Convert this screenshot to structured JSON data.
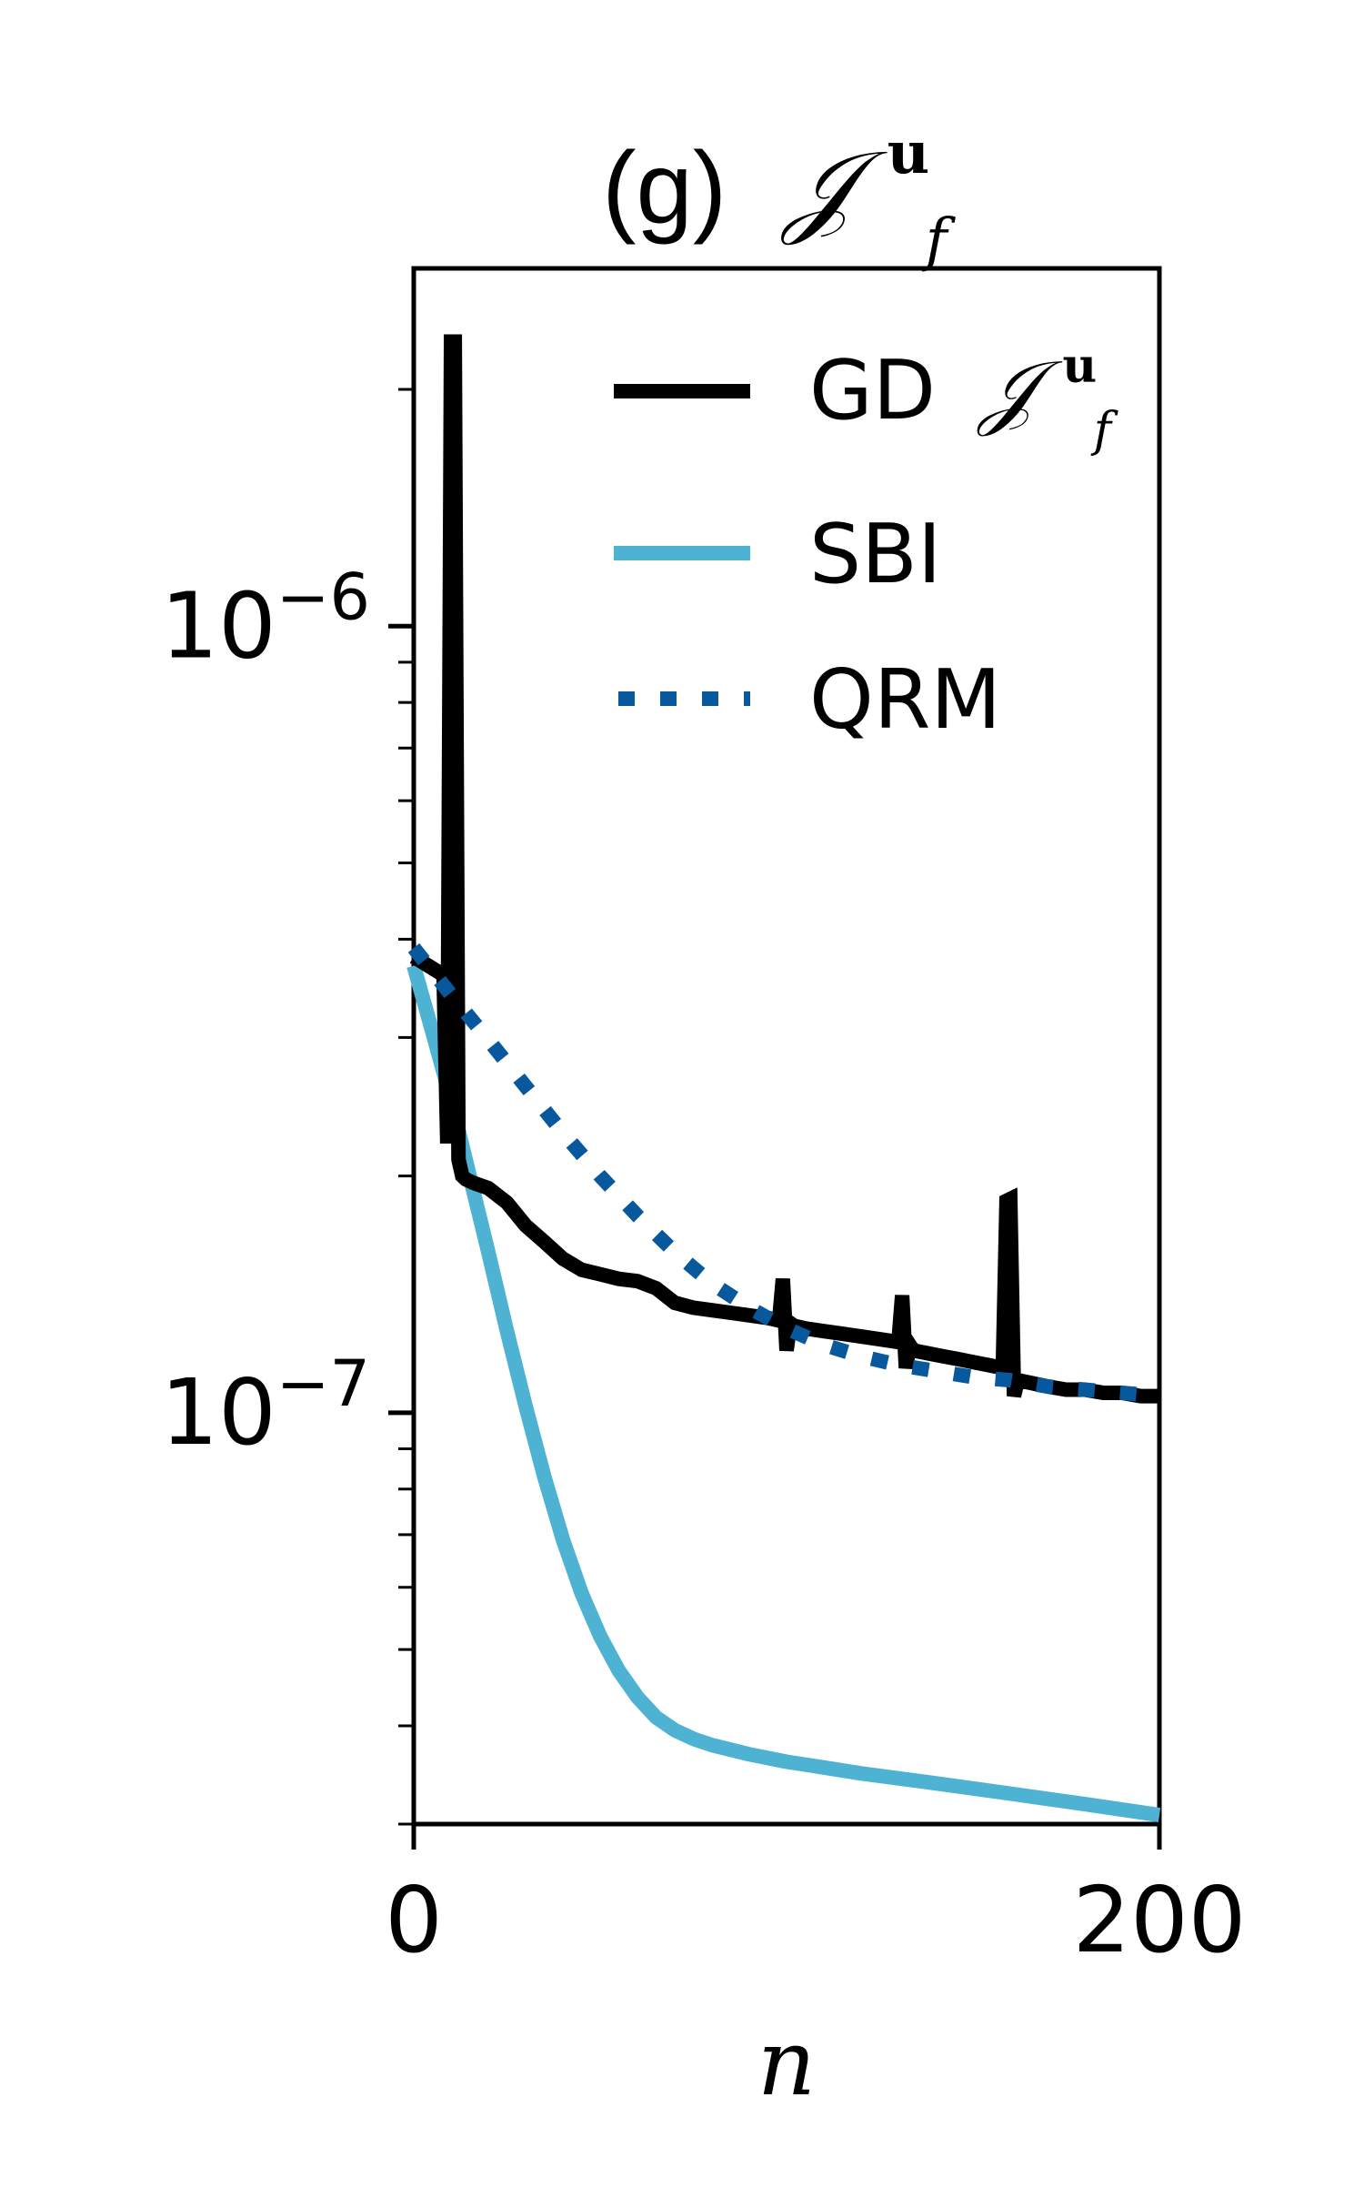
{
  "chart_data": {
    "type": "line",
    "title": {
      "prefix": "(g)",
      "symbol": "𝒥",
      "superscript": "u",
      "subscript": "f"
    },
    "xlabel": "n",
    "ylabel": "",
    "xscale": "linear",
    "yscale": "log",
    "xlim": [
      0,
      200
    ],
    "ylim": [
      3e-08,
      2.85e-06
    ],
    "x_ticks": [
      0,
      200
    ],
    "x_tick_labels": [
      "0",
      "200"
    ],
    "y_major_ticks": [
      1e-07,
      1e-06
    ],
    "y_tick_labels": [
      {
        "base": "10",
        "exp": "−7"
      },
      {
        "base": "10",
        "exp": "−6"
      }
    ],
    "y_minor_ticks": [
      3e-08,
      4e-08,
      5e-08,
      6e-08,
      7e-08,
      8e-08,
      9e-08,
      2e-07,
      3e-07,
      4e-07,
      5e-07,
      6e-07,
      7e-07,
      8e-07,
      9e-07,
      2e-06
    ],
    "grid": false,
    "legend_position": "top-right",
    "series": [
      {
        "name": "GD",
        "legend_symbol": {
          "symbol": "𝒥",
          "superscript": "u",
          "subscript": "f"
        },
        "color": "#000000",
        "style": "solid",
        "x": [
          0,
          8,
          9,
          10,
          11,
          12,
          13,
          14,
          16,
          20,
          25,
          30,
          35,
          40,
          45,
          50,
          55,
          60,
          65,
          70,
          75,
          80,
          85,
          90,
          95,
          98,
          99,
          100,
          101,
          102,
          105,
          110,
          115,
          120,
          125,
          130,
          131,
          132,
          133,
          134,
          138,
          142,
          146,
          150,
          154,
          158,
          159,
          160,
          161,
          162,
          166,
          170,
          175,
          180,
          185,
          190,
          195,
          200
        ],
        "y": [
          3.8e-07,
          3.6e-07,
          2.2e-07,
          2.3e-06,
          2.3e-06,
          2.1e-07,
          2e-07,
          1.98e-07,
          1.96e-07,
          1.93e-07,
          1.85e-07,
          1.73e-07,
          1.65e-07,
          1.57e-07,
          1.52e-07,
          1.5e-07,
          1.48e-07,
          1.47e-07,
          1.44e-07,
          1.38e-07,
          1.36e-07,
          1.35e-07,
          1.34e-07,
          1.33e-07,
          1.32e-07,
          1.31e-07,
          1.48e-07,
          1.2e-07,
          1.3e-07,
          1.29e-07,
          1.28e-07,
          1.27e-07,
          1.26e-07,
          1.25e-07,
          1.24e-07,
          1.23e-07,
          1.41e-07,
          1.14e-07,
          1.22e-07,
          1.2e-07,
          1.19e-07,
          1.18e-07,
          1.17e-07,
          1.16e-07,
          1.15e-07,
          1.14e-07,
          1.86e-07,
          1.87e-07,
          1.05e-07,
          1.1e-07,
          1.09e-07,
          1.08e-07,
          1.07e-07,
          1.07e-07,
          1.06e-07,
          1.06e-07,
          1.05e-07,
          1.05e-07
        ]
      },
      {
        "name": "SBI",
        "color": "#4eb3d3",
        "style": "solid",
        "x": [
          0,
          5,
          10,
          15,
          20,
          25,
          30,
          35,
          40,
          45,
          50,
          55,
          60,
          65,
          70,
          75,
          80,
          90,
          100,
          110,
          120,
          140,
          160,
          180,
          200
        ],
        "y": [
          3.7e-07,
          3.05e-07,
          2.5e-07,
          2e-07,
          1.6e-07,
          1.27e-07,
          1.02e-07,
          8.3e-08,
          6.9e-08,
          5.9e-08,
          5.2e-08,
          4.7e-08,
          4.35e-08,
          4.1e-08,
          3.95e-08,
          3.85e-08,
          3.78e-08,
          3.68e-08,
          3.6e-08,
          3.54e-08,
          3.48e-08,
          3.38e-08,
          3.28e-08,
          3.18e-08,
          3.08e-08
        ]
      },
      {
        "name": "QRM",
        "color": "#08589e",
        "style": "dotted",
        "x": [
          0,
          10,
          20,
          30,
          40,
          50,
          60,
          70,
          80,
          90,
          100,
          110,
          120,
          130,
          140,
          150,
          160,
          170,
          180,
          190,
          200
        ],
        "y": [
          3.9e-07,
          3.4e-07,
          2.98e-07,
          2.6e-07,
          2.27e-07,
          2e-07,
          1.78e-07,
          1.6e-07,
          1.46e-07,
          1.36e-07,
          1.28e-07,
          1.22e-07,
          1.18e-07,
          1.15e-07,
          1.13e-07,
          1.11e-07,
          1.1e-07,
          1.08e-07,
          1.07e-07,
          1.06e-07,
          1.05e-07
        ]
      }
    ]
  }
}
